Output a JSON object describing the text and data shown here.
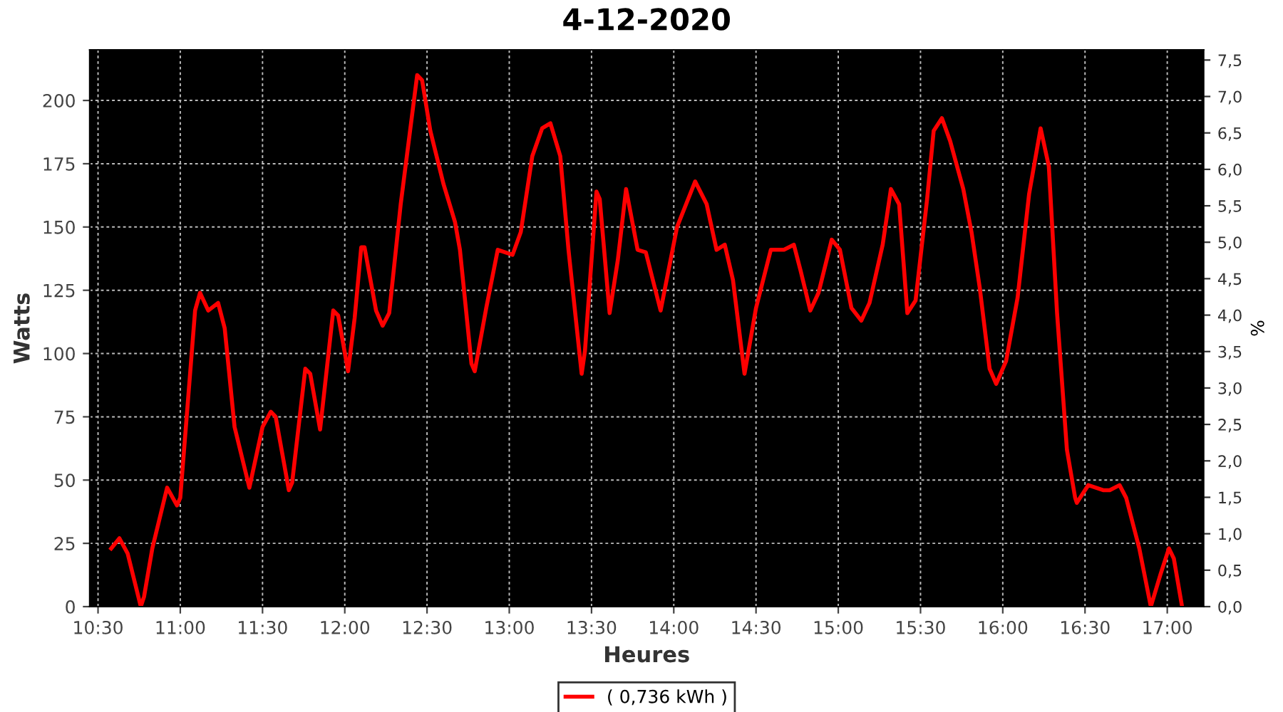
{
  "chart_data": {
    "type": "line",
    "title": "4-12-2020",
    "xlabel": "Heures",
    "ylabel": "Watts",
    "y2label": "%",
    "x": [
      10.58,
      10.63,
      10.68,
      10.76,
      10.78,
      10.83,
      10.92,
      10.98,
      11.0,
      11.09,
      11.12,
      11.17,
      11.23,
      11.27,
      11.33,
      11.42,
      11.5,
      11.55,
      11.58,
      11.66,
      11.68,
      11.76,
      11.79,
      11.85,
      11.93,
      11.96,
      12.02,
      12.06,
      12.1,
      12.12,
      12.19,
      12.23,
      12.27,
      12.34,
      12.44,
      12.47,
      12.52,
      12.6,
      12.67,
      12.7,
      12.77,
      12.79,
      12.86,
      12.93,
      13.02,
      13.07,
      13.14,
      13.2,
      13.25,
      13.31,
      13.36,
      13.44,
      13.46,
      13.53,
      13.55,
      13.61,
      13.66,
      13.71,
      13.78,
      13.83,
      13.92,
      14.02,
      14.13,
      14.2,
      14.26,
      14.31,
      14.36,
      14.43,
      14.5,
      14.59,
      14.67,
      14.73,
      14.77,
      14.83,
      14.88,
      14.96,
      15.01,
      15.08,
      15.14,
      15.19,
      15.27,
      15.32,
      15.37,
      15.42,
      15.47,
      15.54,
      15.58,
      15.63,
      15.68,
      15.76,
      15.81,
      15.86,
      15.92,
      15.96,
      16.02,
      16.09,
      16.16,
      16.23,
      16.28,
      16.33,
      16.39,
      16.44,
      16.45,
      16.52,
      16.61,
      16.65,
      16.71,
      16.75,
      16.83,
      16.9,
      16.96,
      17.01,
      17.04,
      17.09
    ],
    "series": [
      {
        "name": "( 0,736 kWh )",
        "color": "#ff0000",
        "values": [
          23,
          27,
          21,
          0,
          4,
          23,
          47,
          40,
          43,
          117,
          124,
          117,
          120,
          110,
          71,
          47,
          71,
          77,
          75,
          46,
          49,
          94,
          92,
          70,
          117,
          115,
          93,
          114,
          142,
          142,
          117,
          111,
          116,
          159,
          210,
          208,
          188,
          167,
          152,
          141,
          96,
          93,
          118,
          141,
          139,
          148,
          178,
          189,
          191,
          178,
          141,
          92,
          101,
          164,
          161,
          116,
          137,
          165,
          141,
          140,
          117,
          150,
          168,
          159,
          141,
          143,
          129,
          92,
          118,
          141,
          141,
          143,
          133,
          117,
          124,
          145,
          141,
          118,
          113,
          120,
          143,
          165,
          159,
          116,
          121,
          161,
          188,
          193,
          184,
          165,
          148,
          126,
          94,
          88,
          97,
          122,
          163,
          189,
          174,
          116,
          62,
          43,
          41,
          48,
          46,
          46,
          48,
          43,
          23,
          0,
          13,
          23,
          19,
          0
        ]
      }
    ],
    "xlim": [
      10.45,
      17.22
    ],
    "xticks": [
      {
        "value": 10.5,
        "label": "10:30"
      },
      {
        "value": 11,
        "label": "11:00"
      },
      {
        "value": 11.5,
        "label": "11:30"
      },
      {
        "value": 12,
        "label": "12:00"
      },
      {
        "value": 12.5,
        "label": "12:30"
      },
      {
        "value": 13,
        "label": "13:00"
      },
      {
        "value": 13.5,
        "label": "13:30"
      },
      {
        "value": 14,
        "label": "14:00"
      },
      {
        "value": 14.5,
        "label": "14:30"
      },
      {
        "value": 15,
        "label": "15:00"
      },
      {
        "value": 15.5,
        "label": "15:30"
      },
      {
        "value": 16,
        "label": "16:00"
      },
      {
        "value": 16.5,
        "label": "16:30"
      },
      {
        "value": 17,
        "label": "17:00"
      }
    ],
    "ylim": [
      0,
      220
    ],
    "yticks": [
      0,
      25,
      50,
      75,
      100,
      125,
      150,
      175,
      200
    ],
    "y2lim": [
      0,
      7.64
    ],
    "y2ticks": [
      {
        "value": 0,
        "label": "0,0"
      },
      {
        "value": 0.5,
        "label": "0,5"
      },
      {
        "value": 1,
        "label": "1,0"
      },
      {
        "value": 1.5,
        "label": "1,5"
      },
      {
        "value": 2,
        "label": "2,0"
      },
      {
        "value": 2.5,
        "label": "2,5"
      },
      {
        "value": 3,
        "label": "3,0"
      },
      {
        "value": 3.5,
        "label": "3,5"
      },
      {
        "value": 4,
        "label": "4,0"
      },
      {
        "value": 4.5,
        "label": "4,5"
      },
      {
        "value": 5,
        "label": "5,0"
      },
      {
        "value": 5.5,
        "label": "5,5"
      },
      {
        "value": 6,
        "label": "6,0"
      },
      {
        "value": 6.5,
        "label": "6,5"
      },
      {
        "value": 7,
        "label": "7,0"
      },
      {
        "value": 7.5,
        "label": "7,5"
      }
    ],
    "grid": true,
    "legend": "bottom",
    "line_style": "solid"
  }
}
